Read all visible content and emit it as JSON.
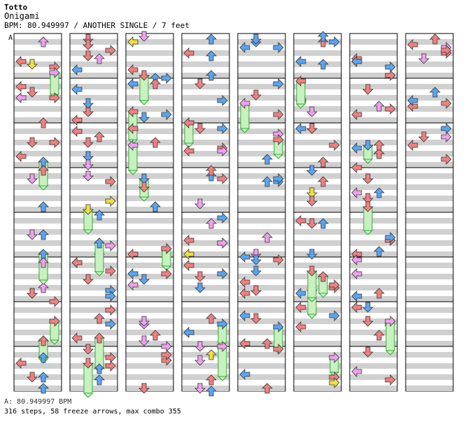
{
  "artist": "Totto",
  "title": "Onigami",
  "info_line": "BPM: 80.949997 / ANOTHER SINGLE / 7 feet",
  "bpm_marker_label": "A",
  "footer": {
    "bpm_line": "A: 80.949997 BPM",
    "summary": "316 steps, 58 freeze arrows, max combo 355"
  },
  "colors": {
    "red": "#f08080",
    "blue": "#5aa5f0",
    "pink": "#f0a0f0",
    "yellow": "#f0e040",
    "green_freeze": "#c8f0c0",
    "stripe": "#d0d0d0"
  },
  "chart_data": {
    "type": "step chart",
    "columns": 8,
    "measures_per_column": 8,
    "lanes": [
      "left",
      "down",
      "up",
      "right"
    ],
    "note_colors": {
      "red": "4th",
      "blue": "8th",
      "pink": "16th",
      "yellow": "24th"
    }
  }
}
